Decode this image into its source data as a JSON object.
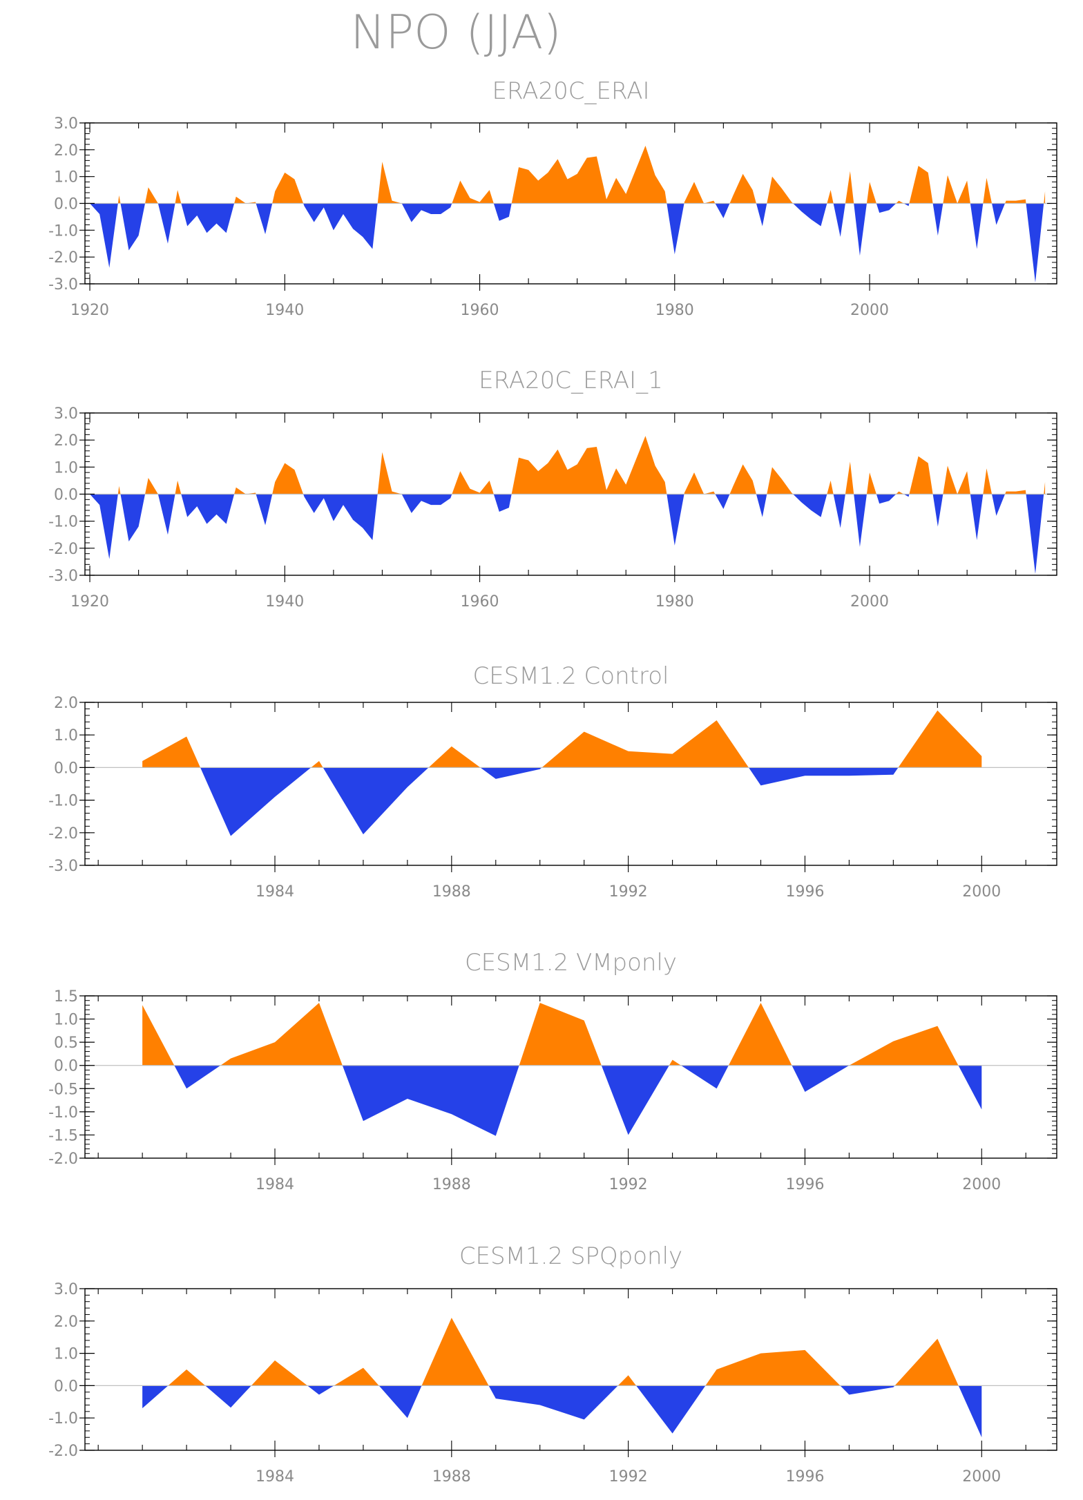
{
  "figure": {
    "title": "NPO (JJA)"
  },
  "colors": {
    "positive": "#ff8000",
    "negative": "#2541e8",
    "frame": "#000000",
    "zero_line": "#c0c0c0",
    "text": "#8a8a8a"
  },
  "chart_data": [
    {
      "type": "area",
      "title": "ERA20C_ERAI",
      "xlabel": "",
      "ylabel": "",
      "xlim": [
        1919.5,
        2019.2
      ],
      "ylim": [
        -3.0,
        3.0
      ],
      "yticks": [
        -3.0,
        -2.0,
        -1.0,
        0.0,
        1.0,
        2.0,
        3.0
      ],
      "ytick_labels": [
        "-3.0",
        "-2.0",
        "-1.0",
        "0.0",
        "1.0",
        "2.0",
        "3.0"
      ],
      "xticks": [
        1920,
        1940,
        1960,
        1980,
        2000
      ],
      "grid": false,
      "x": [
        1920,
        1921,
        1922,
        1923,
        1924,
        1925,
        1926,
        1927,
        1928,
        1929,
        1930,
        1931,
        1932,
        1933,
        1934,
        1935,
        1936,
        1937,
        1938,
        1939,
        1940,
        1941,
        1942,
        1943,
        1944,
        1945,
        1946,
        1947,
        1948,
        1949,
        1950,
        1951,
        1952,
        1953,
        1954,
        1955,
        1956,
        1957,
        1958,
        1959,
        1960,
        1961,
        1962,
        1963,
        1964,
        1965,
        1966,
        1967,
        1968,
        1969,
        1970,
        1971,
        1972,
        1973,
        1974,
        1975,
        1976,
        1977,
        1978,
        1979,
        1980,
        1981,
        1982,
        1983,
        1984,
        1985,
        1986,
        1987,
        1988,
        1989,
        1990,
        1991,
        1992,
        1993,
        1994,
        1995,
        1996,
        1997,
        1998,
        1999,
        2000,
        2001,
        2002,
        2003,
        2004,
        2005,
        2006,
        2007,
        2008,
        2009,
        2010,
        2011,
        2012,
        2013,
        2014,
        2015,
        2016,
        2017,
        2018
      ],
      "values": [
        0.0,
        -0.4,
        -2.4,
        0.3,
        -1.75,
        -1.2,
        0.6,
        0.0,
        -1.5,
        0.5,
        -0.85,
        -0.45,
        -1.1,
        -0.75,
        -1.1,
        0.25,
        0.0,
        0.05,
        -1.15,
        0.45,
        1.15,
        0.9,
        -0.1,
        -0.7,
        -0.15,
        -1.0,
        -0.4,
        -0.95,
        -1.25,
        -1.7,
        1.55,
        0.1,
        0.0,
        -0.7,
        -0.25,
        -0.4,
        -0.4,
        -0.15,
        0.85,
        0.2,
        0.05,
        0.5,
        -0.65,
        -0.5,
        1.35,
        1.25,
        0.85,
        1.15,
        1.65,
        0.9,
        1.1,
        1.7,
        1.75,
        0.15,
        0.95,
        0.35,
        1.25,
        2.15,
        1.05,
        0.45,
        -1.9,
        0.05,
        0.8,
        0.0,
        0.1,
        -0.55,
        0.3,
        1.1,
        0.5,
        -0.85,
        1.0,
        0.55,
        0.05,
        -0.3,
        -0.6,
        -0.85,
        0.5,
        -1.25,
        1.2,
        -1.95,
        0.8,
        -0.35,
        -0.25,
        0.1,
        -0.1,
        1.4,
        1.15,
        -1.2,
        1.05,
        0.0,
        0.85,
        -1.7,
        0.95,
        -0.8,
        0.1,
        0.1,
        0.15,
        -2.95,
        0.45
      ]
    },
    {
      "type": "area",
      "title": "ERA20C_ERAI_1",
      "xlabel": "",
      "ylabel": "",
      "xlim": [
        1919.5,
        2019.2
      ],
      "ylim": [
        -3.0,
        3.0
      ],
      "yticks": [
        -3.0,
        -2.0,
        -1.0,
        0.0,
        1.0,
        2.0,
        3.0
      ],
      "ytick_labels": [
        "-3.0",
        "-2.0",
        "-1.0",
        "0.0",
        "1.0",
        "2.0",
        "3.0"
      ],
      "xticks": [
        1920,
        1940,
        1960,
        1980,
        2000
      ],
      "grid": false,
      "x": [
        1920,
        1921,
        1922,
        1923,
        1924,
        1925,
        1926,
        1927,
        1928,
        1929,
        1930,
        1931,
        1932,
        1933,
        1934,
        1935,
        1936,
        1937,
        1938,
        1939,
        1940,
        1941,
        1942,
        1943,
        1944,
        1945,
        1946,
        1947,
        1948,
        1949,
        1950,
        1951,
        1952,
        1953,
        1954,
        1955,
        1956,
        1957,
        1958,
        1959,
        1960,
        1961,
        1962,
        1963,
        1964,
        1965,
        1966,
        1967,
        1968,
        1969,
        1970,
        1971,
        1972,
        1973,
        1974,
        1975,
        1976,
        1977,
        1978,
        1979,
        1980,
        1981,
        1982,
        1983,
        1984,
        1985,
        1986,
        1987,
        1988,
        1989,
        1990,
        1991,
        1992,
        1993,
        1994,
        1995,
        1996,
        1997,
        1998,
        1999,
        2000,
        2001,
        2002,
        2003,
        2004,
        2005,
        2006,
        2007,
        2008,
        2009,
        2010,
        2011,
        2012,
        2013,
        2014,
        2015,
        2016,
        2017,
        2018
      ],
      "values": [
        0.0,
        -0.4,
        -2.4,
        0.3,
        -1.75,
        -1.2,
        0.6,
        0.0,
        -1.5,
        0.5,
        -0.85,
        -0.45,
        -1.1,
        -0.75,
        -1.1,
        0.25,
        0.0,
        0.05,
        -1.15,
        0.45,
        1.15,
        0.9,
        -0.1,
        -0.7,
        -0.15,
        -1.0,
        -0.4,
        -0.95,
        -1.25,
        -1.7,
        1.55,
        0.1,
        0.0,
        -0.7,
        -0.25,
        -0.4,
        -0.4,
        -0.15,
        0.85,
        0.2,
        0.05,
        0.5,
        -0.65,
        -0.5,
        1.35,
        1.25,
        0.85,
        1.15,
        1.65,
        0.9,
        1.1,
        1.7,
        1.75,
        0.15,
        0.95,
        0.35,
        1.25,
        2.15,
        1.05,
        0.45,
        -1.9,
        0.05,
        0.8,
        0.0,
        0.1,
        -0.55,
        0.3,
        1.1,
        0.5,
        -0.85,
        1.0,
        0.55,
        0.05,
        -0.3,
        -0.6,
        -0.85,
        0.5,
        -1.25,
        1.2,
        -1.95,
        0.8,
        -0.35,
        -0.25,
        0.1,
        -0.1,
        1.4,
        1.15,
        -1.2,
        1.05,
        0.0,
        0.85,
        -1.7,
        0.95,
        -0.8,
        0.1,
        0.1,
        0.15,
        -2.95,
        0.45
      ]
    },
    {
      "type": "area",
      "title": "CESM1.2  Control",
      "xlabel": "",
      "ylabel": "",
      "xlim": [
        1979.7,
        2001.7
      ],
      "ylim": [
        -3.0,
        2.0
      ],
      "yticks": [
        -3.0,
        -2.0,
        -1.0,
        0.0,
        1.0,
        2.0
      ],
      "ytick_labels": [
        "-3.0",
        "-2.0",
        "-1.0",
        "0.0",
        "1.0",
        "2.0"
      ],
      "xticks": [
        1984,
        1988,
        1992,
        1996,
        2000
      ],
      "grid": false,
      "x": [
        1981,
        1982,
        1983,
        1984,
        1985,
        1986,
        1987,
        1988,
        1989,
        1990,
        1991,
        1992,
        1993,
        1994,
        1995,
        1996,
        1997,
        1998,
        1999,
        2000
      ],
      "values": [
        0.2,
        0.95,
        -2.1,
        -0.9,
        0.2,
        -2.05,
        -0.6,
        0.65,
        -0.35,
        -0.05,
        1.1,
        0.5,
        0.42,
        1.45,
        -0.55,
        -0.25,
        -0.25,
        -0.22,
        1.75,
        0.35
      ]
    },
    {
      "type": "area",
      "title": "CESM1.2  VMponly",
      "xlabel": "",
      "ylabel": "",
      "xlim": [
        1979.7,
        2001.7
      ],
      "ylim": [
        -2.0,
        1.5
      ],
      "yticks": [
        -2.0,
        -1.5,
        -1.0,
        -0.5,
        0.0,
        0.5,
        1.0,
        1.5
      ],
      "ytick_labels": [
        "-2.0",
        "-1.5",
        "-1.0",
        "-0.5",
        "0.0",
        "0.5",
        "1.0",
        "1.5"
      ],
      "xticks": [
        1984,
        1988,
        1992,
        1996,
        2000
      ],
      "grid": false,
      "x": [
        1981,
        1982,
        1983,
        1984,
        1985,
        1986,
        1987,
        1988,
        1989,
        1990,
        1991,
        1992,
        1993,
        1994,
        1995,
        1996,
        1997,
        1998,
        1999,
        2000
      ],
      "values": [
        1.3,
        -0.5,
        0.15,
        0.5,
        1.35,
        -1.2,
        -0.72,
        -1.05,
        -1.52,
        1.35,
        0.97,
        -1.5,
        0.12,
        -0.5,
        1.35,
        -0.57,
        0.0,
        0.52,
        0.85,
        -0.95
      ]
    },
    {
      "type": "area",
      "title": "CESM1.2  SPQponly",
      "xlabel": "",
      "ylabel": "",
      "xlim": [
        1979.7,
        2001.7
      ],
      "ylim": [
        -2.0,
        3.0
      ],
      "yticks": [
        -2.0,
        -1.0,
        0.0,
        1.0,
        2.0,
        3.0
      ],
      "ytick_labels": [
        "-2.0",
        "-1.0",
        "0.0",
        "1.0",
        "2.0",
        "3.0"
      ],
      "xticks": [
        1984,
        1988,
        1992,
        1996,
        2000
      ],
      "grid": false,
      "x": [
        1981,
        1982,
        1983,
        1984,
        1985,
        1986,
        1987,
        1988,
        1989,
        1990,
        1991,
        1992,
        1993,
        1994,
        1995,
        1996,
        1997,
        1998,
        1999,
        2000
      ],
      "values": [
        -0.7,
        0.5,
        -0.68,
        0.78,
        -0.28,
        0.55,
        -1.0,
        2.1,
        -0.4,
        -0.6,
        -1.05,
        0.32,
        -1.48,
        0.5,
        1.0,
        1.1,
        -0.28,
        -0.05,
        1.45,
        -1.6
      ]
    }
  ]
}
